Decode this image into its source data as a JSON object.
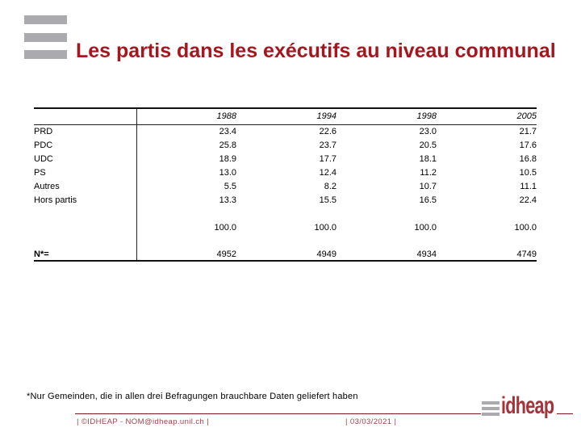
{
  "title": "Les partis dans les exécutifs au niveau communal",
  "table": {
    "col_headers": [
      "1988",
      "1994",
      "1998",
      "2005"
    ],
    "rows": [
      {
        "label": "PRD",
        "values": [
          "23.4",
          "22.6",
          "23.0",
          "21.7"
        ]
      },
      {
        "label": "PDC",
        "values": [
          "25.8",
          "23.7",
          "20.5",
          "17.6"
        ]
      },
      {
        "label": "UDC",
        "values": [
          "18.9",
          "17.7",
          "18.1",
          "16.8"
        ]
      },
      {
        "label": "PS",
        "values": [
          "13.0",
          "12.4",
          "11.2",
          "10.5"
        ]
      },
      {
        "label": "Autres",
        "values": [
          "5.5",
          "8.2",
          "10.7",
          "11.1"
        ]
      },
      {
        "label": "Hors partis",
        "values": [
          "13.3",
          "15.5",
          "16.5",
          "22.4"
        ]
      }
    ],
    "total_values": [
      "100.0",
      "100.0",
      "100.0",
      "100.0"
    ],
    "n_label": "N*=",
    "n_values": [
      "4952",
      "4949",
      "4934",
      "4749"
    ]
  },
  "footnote": "*Nur Gemeinden, die in allen drei Befragungen brauchbare Daten geliefert haben",
  "footer": {
    "left": "| ©IDHEAP - NOM@idheap.unil.ch |",
    "right": "| 03/03/2021 |"
  },
  "logo": {
    "text": "idheap",
    "bars_icon": "three-gray-bars"
  },
  "colors": {
    "title_red": "#A5161F",
    "footer_text_red": "#A04048",
    "footer_line_red": "#7D1A20",
    "logo_red": "#A4333A",
    "bar_gray": "#ABABAF",
    "table_line": "#111111"
  }
}
